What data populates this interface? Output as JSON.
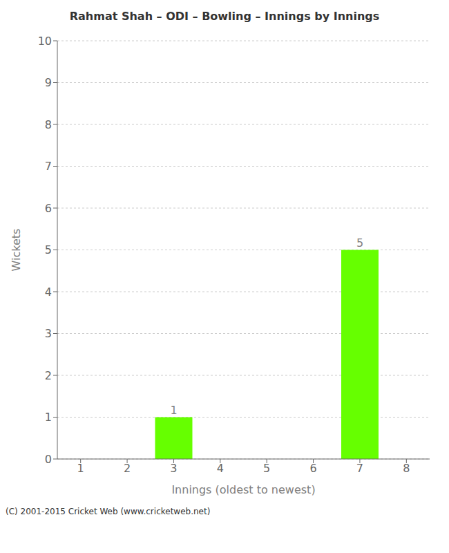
{
  "chart_data": {
    "type": "bar",
    "title": "Rahmat Shah – ODI – Bowling – Innings by Innings",
    "xlabel": "Innings (oldest to newest)",
    "ylabel": "Wickets",
    "categories": [
      1,
      2,
      3,
      4,
      5,
      6,
      7,
      8
    ],
    "values": [
      0,
      0,
      1,
      0,
      0,
      0,
      5,
      0
    ],
    "color": "#66ff00",
    "ylim": [
      0,
      10
    ],
    "yticks": [
      0,
      1,
      2,
      3,
      4,
      5,
      6,
      7,
      8,
      9,
      10
    ],
    "grid": true,
    "data_labels": true,
    "annotations": [
      "(C) 2001-2015 Cricket Web (www.cricketweb.net)"
    ]
  }
}
